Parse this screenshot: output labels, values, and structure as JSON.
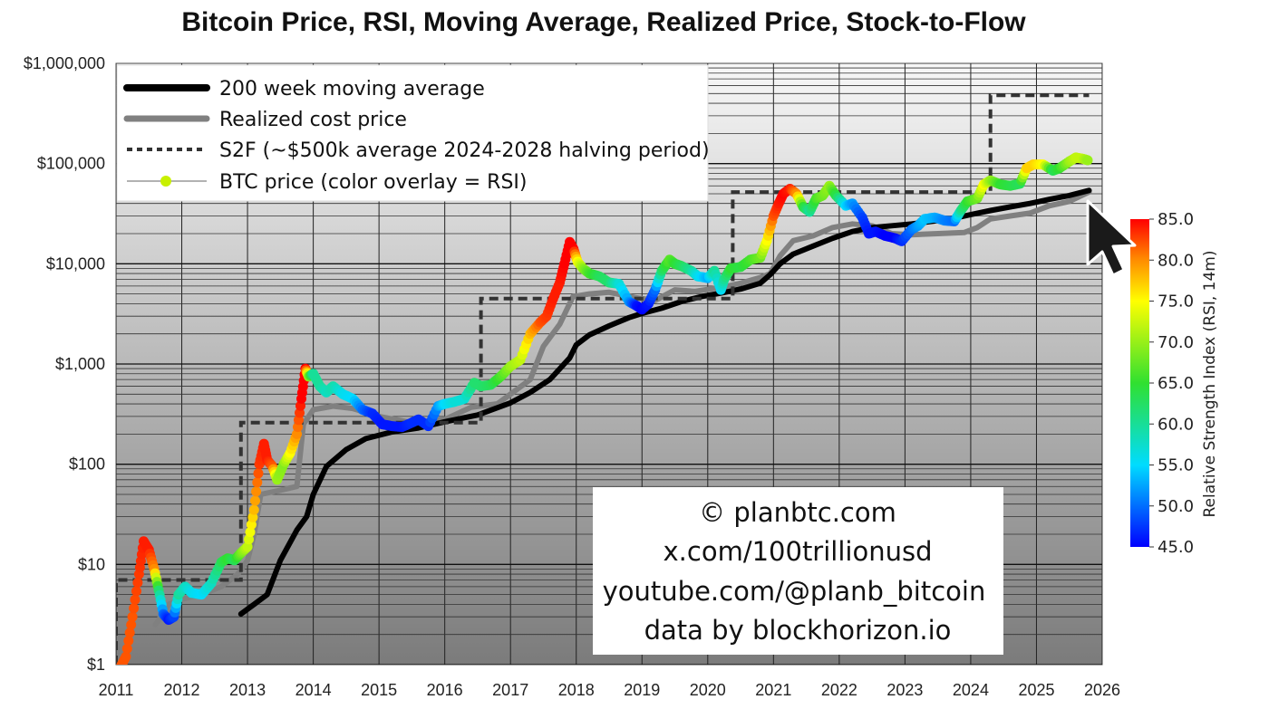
{
  "chart_data": {
    "type": "line",
    "title": "Bitcoin Price, RSI, Moving Average, Realized Price, Stock-to-Flow",
    "x_axis": {
      "range": [
        2011,
        2026
      ],
      "ticks": [
        2011,
        2012,
        2013,
        2014,
        2015,
        2016,
        2017,
        2018,
        2019,
        2020,
        2021,
        2022,
        2023,
        2024,
        2025,
        2026
      ]
    },
    "y_axis": {
      "scale": "log",
      "range": [
        1,
        1000000
      ],
      "tick_values": [
        1,
        10,
        100,
        1000,
        10000,
        100000,
        1000000
      ],
      "tick_labels": [
        "$1",
        "$10",
        "$100",
        "$1,000",
        "$10,000",
        "$100,000",
        "$1,000,000"
      ]
    },
    "grid": true,
    "legend": {
      "placement": "top-left",
      "entries": [
        "200 week moving average",
        "Realized cost price",
        "S2F (~$500k average 2024-2028 halving period)",
        "BTC price (color overlay = RSI)"
      ]
    },
    "series": [
      {
        "name": "200 week moving average",
        "color": "#000000",
        "x": [
          2012.9,
          2013.1,
          2013.3,
          2013.5,
          2013.75,
          2013.9,
          2014.0,
          2014.2,
          2014.5,
          2014.8,
          2015.2,
          2015.6,
          2016.0,
          2016.5,
          2017.0,
          2017.3,
          2017.6,
          2017.9,
          2018.0,
          2018.2,
          2018.5,
          2018.8,
          2019.0,
          2019.3,
          2019.6,
          2019.9,
          2020.2,
          2020.5,
          2020.8,
          2020.95,
          2021.1,
          2021.3,
          2021.6,
          2021.9,
          2022.2,
          2022.5,
          2022.8,
          2023.1,
          2023.4,
          2023.7,
          2024.0,
          2024.3,
          2024.6,
          2024.9,
          2025.2,
          2025.5,
          2025.8
        ],
        "y": [
          3.2,
          4,
          5,
          11,
          22,
          30,
          50,
          95,
          140,
          180,
          210,
          230,
          265,
          310,
          410,
          520,
          700,
          1150,
          1550,
          1950,
          2400,
          2900,
          3200,
          3600,
          4200,
          4700,
          5100,
          5600,
          6400,
          7800,
          10000,
          12500,
          15000,
          18000,
          21000,
          23000,
          24000,
          25000,
          26500,
          28000,
          31000,
          34000,
          37000,
          40000,
          44000,
          48000,
          54000
        ]
      },
      {
        "name": "Realized cost price",
        "color": "#808080",
        "x": [
          2011.6,
          2011.8,
          2012.0,
          2012.3,
          2012.6,
          2012.85,
          2013.0,
          2013.1,
          2013.2,
          2013.5,
          2013.75,
          2013.85,
          2014.0,
          2014.3,
          2014.6,
          2015.0,
          2015.5,
          2016.0,
          2016.4,
          2016.8,
          2017.0,
          2017.3,
          2017.5,
          2017.75,
          2017.95,
          2018.2,
          2018.5,
          2018.9,
          2019.2,
          2019.5,
          2019.8,
          2020.2,
          2020.5,
          2020.8,
          2020.95,
          2021.1,
          2021.3,
          2021.6,
          2021.9,
          2022.2,
          2022.5,
          2022.8,
          2023.1,
          2023.5,
          2023.9,
          2024.1,
          2024.3,
          2024.6,
          2024.9,
          2025.2,
          2025.5,
          2025.8
        ],
        "y": [
          2.5,
          4,
          4.5,
          5,
          6,
          8,
          11,
          20,
          50,
          55,
          60,
          250,
          350,
          380,
          360,
          300,
          260,
          280,
          370,
          400,
          500,
          700,
          1500,
          2500,
          4700,
          5000,
          5200,
          4600,
          4300,
          5500,
          5300,
          5800,
          6400,
          7300,
          8000,
          12000,
          17000,
          19000,
          23000,
          25000,
          24000,
          20000,
          19500,
          20000,
          20500,
          23000,
          28000,
          30000,
          32000,
          38000,
          42000,
          52000
        ]
      },
      {
        "name": "S2F (~$500k average 2024-2028 halving period)",
        "color": "#333333",
        "x": [
          2011.0,
          2011.0,
          2012.9,
          2012.9,
          2016.55,
          2016.55,
          2020.38,
          2020.38,
          2024.3,
          2024.3,
          2025.8
        ],
        "y": [
          1,
          7,
          7,
          260,
          260,
          4500,
          4500,
          52000,
          52000,
          480000,
          480000
        ]
      },
      {
        "name": "BTC price (color overlay = RSI)",
        "color": "#ffff00",
        "rsi_range": [
          45,
          85
        ],
        "x": [
          2011.05,
          2011.15,
          2011.25,
          2011.35,
          2011.42,
          2011.5,
          2011.58,
          2011.65,
          2011.72,
          2011.8,
          2011.88,
          2011.95,
          2012.05,
          2012.15,
          2012.3,
          2012.45,
          2012.6,
          2012.7,
          2012.8,
          2012.9,
          2013.0,
          2013.1,
          2013.18,
          2013.25,
          2013.3,
          2013.38,
          2013.45,
          2013.55,
          2013.65,
          2013.75,
          2013.82,
          2013.88,
          2013.93,
          2014.0,
          2014.1,
          2014.2,
          2014.3,
          2014.45,
          2014.6,
          2014.75,
          2014.9,
          2015.05,
          2015.2,
          2015.35,
          2015.5,
          2015.6,
          2015.75,
          2015.9,
          2016.0,
          2016.15,
          2016.3,
          2016.45,
          2016.55,
          2016.7,
          2016.85,
          2017.0,
          2017.15,
          2017.3,
          2017.45,
          2017.55,
          2017.65,
          2017.75,
          2017.82,
          2017.9,
          2017.96,
          2018.02,
          2018.1,
          2018.2,
          2018.35,
          2018.5,
          2018.65,
          2018.8,
          2018.92,
          2019.0,
          2019.1,
          2019.2,
          2019.3,
          2019.42,
          2019.5,
          2019.6,
          2019.75,
          2019.85,
          2020.0,
          2020.1,
          2020.2,
          2020.25,
          2020.35,
          2020.5,
          2020.65,
          2020.8,
          2020.9,
          2021.0,
          2021.08,
          2021.15,
          2021.25,
          2021.35,
          2021.45,
          2021.55,
          2021.65,
          2021.75,
          2021.85,
          2021.95,
          2022.1,
          2022.2,
          2022.35,
          2022.45,
          2022.55,
          2022.7,
          2022.85,
          2022.95,
          2023.1,
          2023.2,
          2023.3,
          2023.45,
          2023.6,
          2023.75,
          2023.85,
          2023.95,
          2024.1,
          2024.2,
          2024.3,
          2024.45,
          2024.6,
          2024.75,
          2024.85,
          2024.95,
          2025.1,
          2025.25,
          2025.35,
          2025.5,
          2025.6,
          2025.7,
          2025.78
        ],
        "y": [
          0.9,
          1.2,
          3.0,
          8.0,
          17.0,
          14.0,
          9.0,
          5.5,
          3.2,
          2.8,
          3.0,
          5.0,
          6.0,
          5.2,
          5.0,
          6.5,
          10.5,
          11.5,
          11.0,
          13.0,
          15.0,
          35.0,
          100.0,
          160.0,
          110.0,
          95.0,
          70.0,
          100.0,
          130.0,
          200.0,
          450.0,
          900.0,
          750.0,
          800.0,
          600.0,
          520.0,
          600.0,
          500.0,
          450.0,
          350.0,
          320.0,
          250.0,
          240.0,
          235.0,
          260.0,
          280.0,
          240.0,
          380.0,
          400.0,
          420.0,
          450.0,
          650.0,
          600.0,
          620.0,
          750.0,
          950.0,
          1100.0,
          2000.0,
          2600.0,
          3000.0,
          4500.0,
          6500.0,
          10000.0,
          16500.0,
          14000.0,
          10500.0,
          9000.0,
          8000.0,
          7500.0,
          6500.0,
          6300.0,
          4200.0,
          3800.0,
          3500.0,
          4000.0,
          5500.0,
          8500.0,
          11000.0,
          10000.0,
          9500.0,
          8500.0,
          7500.0,
          7200.0,
          8500.0,
          5500.0,
          7000.0,
          9000.0,
          9300.0,
          11000.0,
          11500.0,
          17000.0,
          30000.0,
          40000.0,
          50000.0,
          56000.0,
          50000.0,
          37000.0,
          33000.0,
          45000.0,
          48000.0,
          60000.0,
          48000.0,
          38000.0,
          40000.0,
          29000.0,
          20000.0,
          21000.0,
          19000.0,
          18000.0,
          16800.0,
          22000.0,
          24000.0,
          28000.0,
          29000.0,
          27000.0,
          26500.0,
          34000.0,
          42000.0,
          45000.0,
          62000.0,
          68000.0,
          62000.0,
          60000.0,
          63000.0,
          90000.0,
          98000.0,
          98000.0,
          85000.0,
          90000.0,
          105000.0,
          115000.0,
          112000.0,
          108000.0
        ],
        "rsi": [
          82,
          82,
          82,
          83,
          84,
          84,
          80,
          62,
          50,
          46,
          48,
          60,
          58,
          56,
          55,
          58,
          63,
          65,
          63,
          68,
          72,
          78,
          83,
          84,
          84,
          82,
          70,
          69,
          75,
          80,
          85,
          85,
          70,
          60,
          60,
          58,
          59,
          56,
          55,
          50,
          47,
          46,
          46,
          46,
          47,
          47,
          47,
          52,
          55,
          57,
          57,
          62,
          62,
          63,
          66,
          70,
          72,
          78,
          82,
          83,
          84,
          84,
          85,
          85,
          85,
          75,
          70,
          66,
          63,
          62,
          57,
          52,
          46,
          45,
          46,
          50,
          62,
          67,
          65,
          63,
          60,
          56,
          53,
          60,
          55,
          60,
          65,
          64,
          66,
          68,
          75,
          82,
          84,
          85,
          84,
          80,
          65,
          60,
          66,
          68,
          70,
          64,
          55,
          52,
          48,
          46,
          46,
          45,
          45,
          47,
          50,
          52,
          54,
          53,
          51,
          50,
          60,
          65,
          68,
          75,
          70,
          65,
          64,
          63,
          77,
          77,
          75,
          63,
          65,
          70,
          72,
          72,
          70
        ]
      }
    ]
  },
  "colorbar": {
    "label": "Relative Strength Index (RSI, 14m)",
    "range": [
      45,
      85
    ],
    "ticks": [
      "85.0",
      "80.0",
      "75.0",
      "70.0",
      "65.0",
      "60.0",
      "55.0",
      "50.0",
      "45.0"
    ]
  },
  "credits": {
    "lines": [
      "© planbtc.com",
      "x.com/100trillionusd",
      "youtube.com/@planb_bitcoin",
      "data by blockhorizon.io"
    ]
  }
}
